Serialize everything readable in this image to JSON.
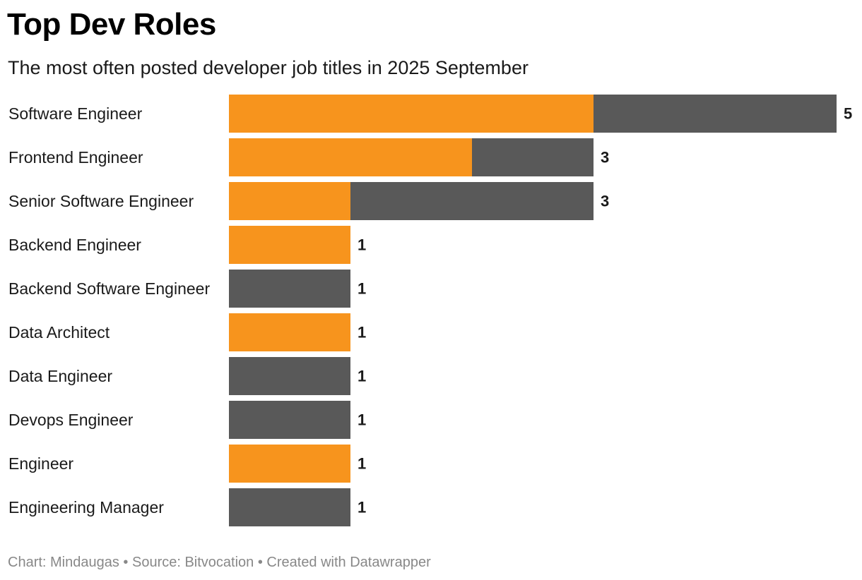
{
  "chart_data": {
    "type": "bar",
    "orientation": "horizontal",
    "stacked": true,
    "title": "Top Dev Roles",
    "subtitle": "The most often posted developer job titles in 2025 September",
    "categories": [
      "Software Engineer",
      "Frontend Engineer",
      "Senior Software Engineer",
      "Backend Engineer",
      "Backend Software Engineer",
      "Data Architect",
      "Data Engineer",
      "Devops Engineer",
      "Engineer",
      "Engineering Manager"
    ],
    "series": [
      {
        "name": "orange",
        "color": "#F7941D",
        "values": [
          3,
          2,
          1,
          1,
          0,
          1,
          0,
          0,
          1,
          0
        ]
      },
      {
        "name": "gray",
        "color": "#595959",
        "values": [
          2,
          1,
          2,
          0,
          1,
          0,
          1,
          1,
          0,
          1
        ]
      }
    ],
    "totals": [
      5,
      3,
      3,
      1,
      1,
      1,
      1,
      1,
      1,
      1
    ],
    "total_labels": [
      "5",
      "3",
      "3",
      "1",
      "1",
      "1",
      "1",
      "1",
      "1",
      "1"
    ],
    "xlim": [
      0,
      5
    ],
    "grid": false,
    "legend": "none"
  },
  "footer": {
    "text": "Chart: Mindaugas • Source: Bitvocation • Created with Datawrapper"
  }
}
